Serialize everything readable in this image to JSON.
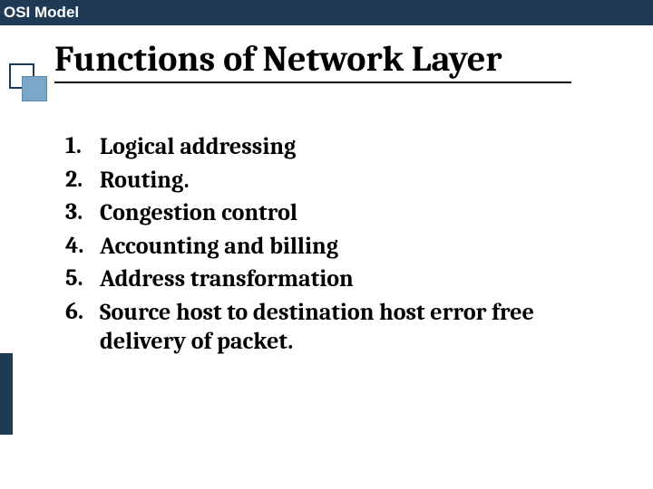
{
  "header": {
    "label": "OSI Model"
  },
  "title": "Functions of Network Layer",
  "colors": {
    "header_bg": "#1f3a54",
    "accent_square": "#7ba7c9",
    "text": "#000000",
    "background": "#ffffff"
  },
  "typography": {
    "title_fontsize": 40,
    "list_fontsize": 26,
    "header_fontsize": 17,
    "font_family_title": "Cambria, Georgia, serif",
    "font_family_header": "Arial, sans-serif"
  },
  "list": {
    "items": [
      {
        "num": "1.",
        "text": "Logical addressing"
      },
      {
        "num": "2.",
        "text": "Routing."
      },
      {
        "num": "3.",
        "text": "Congestion control"
      },
      {
        "num": "4.",
        "text": "Accounting and billing"
      },
      {
        "num": "5.",
        "text": "Address transformation"
      },
      {
        "num": "6.",
        "text": "Source host to destination host error free delivery of packet."
      }
    ]
  }
}
